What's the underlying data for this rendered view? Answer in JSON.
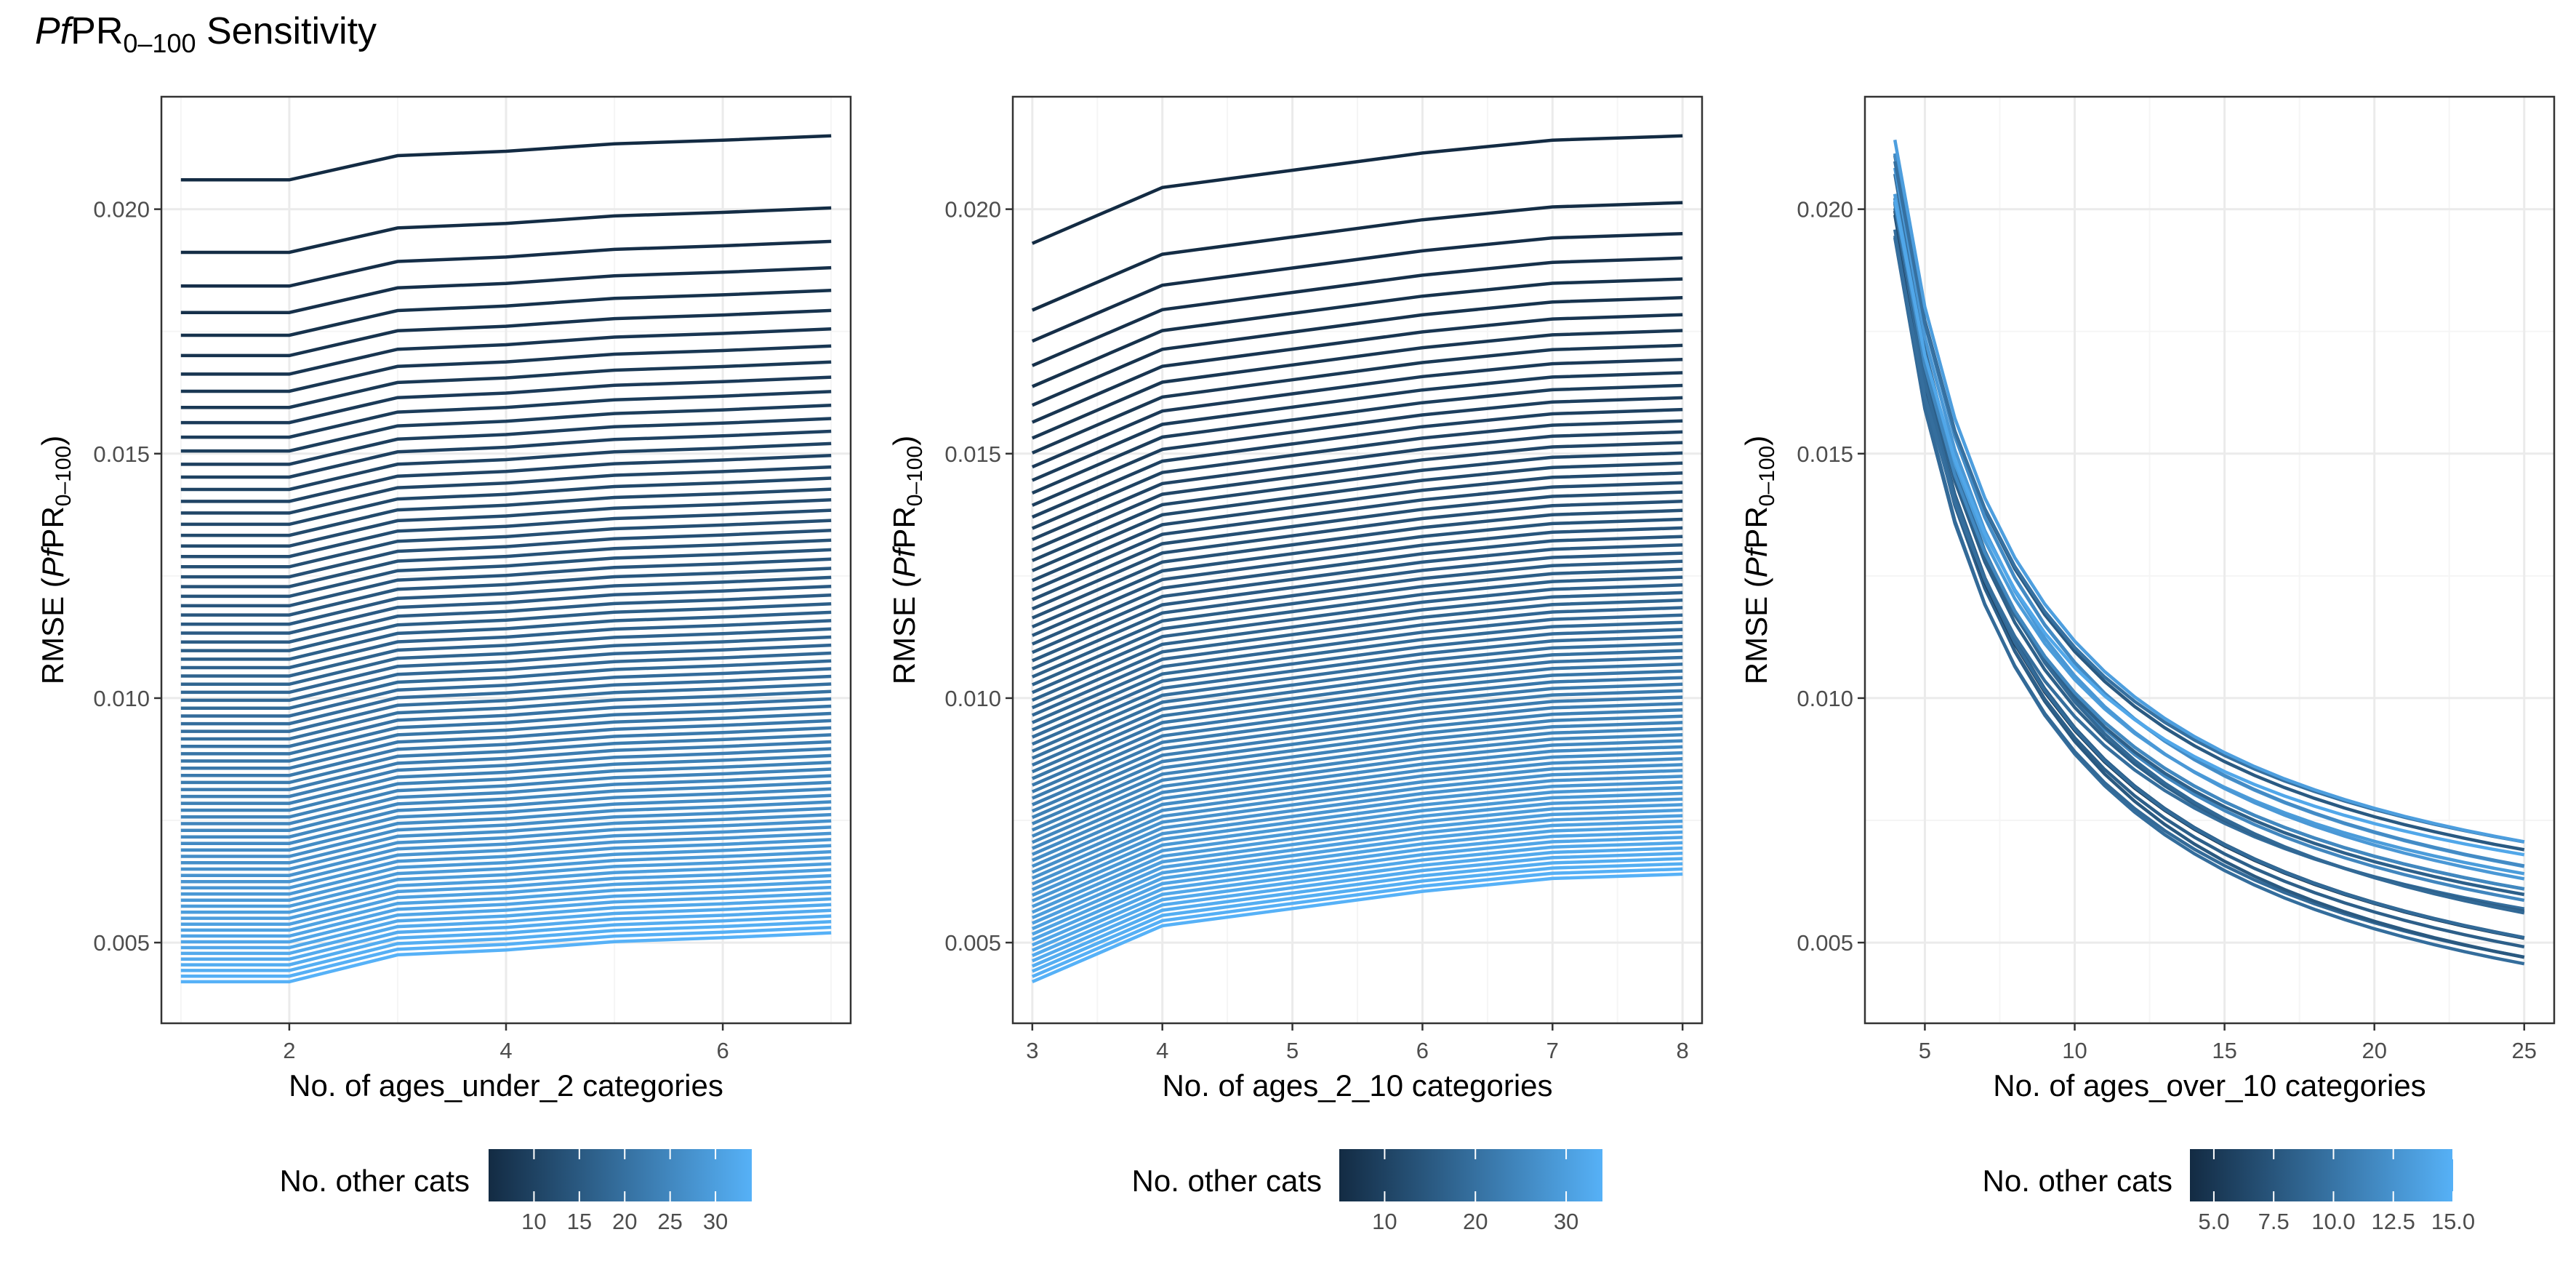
{
  "title": {
    "main": "PfPR",
    "italic": "Pf",
    "plain": "PR",
    "subscript": "0–100",
    "rest": " Sensitivity"
  },
  "y_title": {
    "prefix": "RMSE (",
    "italic": "Pf",
    "plain": "PR",
    "subscript": "0–100",
    "suffix": ")"
  },
  "colors": {
    "low": "#132b43",
    "high": "#56b1f7",
    "grid_major": "#ebebeb",
    "grid_minor": "#f5f5f5",
    "border": "#333333"
  },
  "chart_data": [
    {
      "type": "line",
      "xlabel": "No. of ages_under_2 categories",
      "ylabel": "RMSE (PfPR0–100)",
      "x": [
        1,
        2,
        3,
        4,
        5,
        6,
        7
      ],
      "xlim": [
        0.82,
        7.18
      ],
      "xticks": [
        2,
        4,
        6
      ],
      "ylim": [
        0.00335,
        0.0223
      ],
      "yticks": [
        0.005,
        0.01,
        0.015,
        0.02
      ],
      "ytick_labels": [
        "0.005",
        "0.010",
        "0.015",
        "0.020"
      ],
      "n_series": 80,
      "series_start": {
        "min": 0.0042,
        "max": 0.0206
      },
      "series_end": {
        "min": 0.0052,
        "max": 0.0215
      },
      "shape": [
        0,
        0,
        0.55,
        0.65,
        0.82,
        0.9,
        1.0
      ],
      "legend": {
        "title": "No. other cats",
        "min": 5,
        "max": 34,
        "ticks": [
          10,
          15,
          20,
          25,
          30
        ],
        "tick_labels": [
          "10",
          "15",
          "20",
          "25",
          "30"
        ]
      }
    },
    {
      "type": "line",
      "xlabel": "No. of ages_2_10 categories",
      "ylabel": "RMSE (PfPR0–100)",
      "x": [
        3,
        4,
        5,
        6,
        7,
        8
      ],
      "xlim": [
        2.85,
        8.15
      ],
      "xticks": [
        3,
        4,
        5,
        6,
        7,
        8
      ],
      "ylim": [
        0.00335,
        0.0223
      ],
      "yticks": [
        0.005,
        0.01,
        0.015,
        0.02
      ],
      "ytick_labels": [
        "0.005",
        "0.010",
        "0.015",
        "0.020"
      ],
      "n_series": 80,
      "series_start": {
        "min": 0.0042,
        "max": 0.0193
      },
      "series_end": {
        "min": 0.0064,
        "max": 0.0215
      },
      "shape": [
        0,
        0.52,
        0.68,
        0.84,
        0.96,
        1.0
      ],
      "legend": {
        "title": "No. other cats",
        "min": 5,
        "max": 34,
        "ticks": [
          10,
          20,
          30
        ],
        "tick_labels": [
          "10",
          "20",
          "30"
        ]
      }
    },
    {
      "type": "line",
      "xlabel": "No. of ages_over_10 categories",
      "ylabel": "RMSE (PfPR0–100)",
      "x": [
        4,
        5,
        6,
        7,
        8,
        9,
        10,
        11,
        12,
        13,
        14,
        15,
        16,
        17,
        18,
        19,
        20,
        21,
        22,
        23,
        24,
        25
      ],
      "xlim": [
        3.0,
        26.0
      ],
      "xticks": [
        5,
        10,
        15,
        20,
        25
      ],
      "ylim": [
        0.00335,
        0.0223
      ],
      "yticks": [
        0.005,
        0.01,
        0.015,
        0.02
      ],
      "ytick_labels": [
        "0.005",
        "0.010",
        "0.015",
        "0.020"
      ],
      "n_series": 22,
      "series_start": {
        "min": 0.0184,
        "max": 0.0215
      },
      "series_end": {
        "min": 0.0042,
        "max": 0.0073
      },
      "decay": true,
      "legend": {
        "title": "No. other cats",
        "min": 4,
        "max": 15,
        "ticks": [
          5.0,
          7.5,
          10.0,
          12.5,
          15.0
        ],
        "tick_labels": [
          "5.0",
          "7.5",
          "10.0",
          "12.5",
          "15.0"
        ]
      }
    }
  ]
}
